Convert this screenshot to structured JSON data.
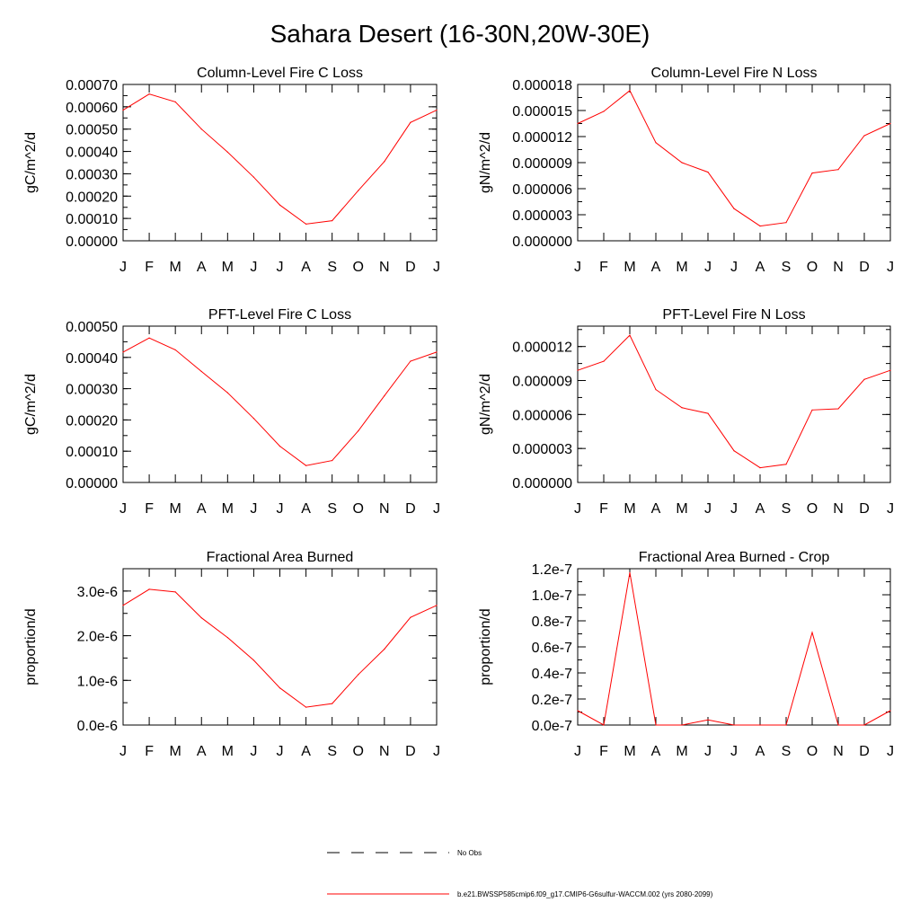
{
  "title": "Sahara Desert (16-30N,20W-30E)",
  "chart_data": [
    {
      "type": "line",
      "title": "Column-Level Fire C Loss",
      "ylabel": "gC/m^2/d",
      "categories": [
        "J",
        "F",
        "M",
        "A",
        "M",
        "J",
        "J",
        "A",
        "S",
        "O",
        "N",
        "D",
        "J"
      ],
      "ylim": [
        0,
        0.0007
      ],
      "yticks": [
        "0.00000",
        "0.00010",
        "0.00020",
        "0.00030",
        "0.00040",
        "0.00050",
        "0.00060",
        "0.00070"
      ],
      "ytick_values": [
        0,
        0.0001,
        0.0002,
        0.0003,
        0.0004,
        0.0005,
        0.0006,
        0.0007
      ],
      "series": [
        {
          "values": [
            0.000585,
            0.000657,
            0.000622,
            0.0005,
            0.000397,
            0.000285,
            0.00016,
            7.5e-05,
            9e-05,
            0.000225,
            0.000355,
            0.00053,
            0.000585
          ]
        }
      ]
    },
    {
      "type": "line",
      "title": "Column-Level Fire N Loss",
      "ylabel": "gN/m^2/d",
      "categories": [
        "J",
        "F",
        "M",
        "A",
        "M",
        "J",
        "J",
        "A",
        "S",
        "O",
        "N",
        "D",
        "J"
      ],
      "ylim": [
        0,
        1.8e-05
      ],
      "yticks": [
        "0.000000",
        "0.000003",
        "0.000006",
        "0.000009",
        "0.000012",
        "0.000015",
        "0.000018"
      ],
      "ytick_values": [
        0,
        3e-06,
        6e-06,
        9e-06,
        1.2e-05,
        1.5e-05,
        1.8e-05
      ],
      "series": [
        {
          "values": [
            1.35e-05,
            1.49e-05,
            1.73e-05,
            1.13e-05,
            9e-06,
            7.9e-06,
            3.7e-06,
            1.7e-06,
            2.1e-06,
            7.8e-06,
            8.2e-06,
            1.21e-05,
            1.35e-05
          ]
        }
      ]
    },
    {
      "type": "line",
      "title": "PFT-Level Fire C Loss",
      "ylabel": "gC/m^2/d",
      "categories": [
        "J",
        "F",
        "M",
        "A",
        "M",
        "J",
        "J",
        "A",
        "S",
        "O",
        "N",
        "D",
        "J"
      ],
      "ylim": [
        0,
        0.0005
      ],
      "yticks": [
        "0.00000",
        "0.00010",
        "0.00020",
        "0.00030",
        "0.00040",
        "0.00050"
      ],
      "ytick_values": [
        0,
        0.0001,
        0.0002,
        0.0003,
        0.0004,
        0.0005
      ],
      "series": [
        {
          "values": [
            0.000417,
            0.000462,
            0.000424,
            0.000355,
            0.000287,
            0.000205,
            0.000116,
            5.4e-05,
            7e-05,
            0.000165,
            0.000277,
            0.000388,
            0.000417
          ]
        }
      ]
    },
    {
      "type": "line",
      "title": "PFT-Level Fire N Loss",
      "ylabel": "gN/m^2/d",
      "categories": [
        "J",
        "F",
        "M",
        "A",
        "M",
        "J",
        "J",
        "A",
        "S",
        "O",
        "N",
        "D",
        "J"
      ],
      "ylim": [
        0,
        1.38e-05
      ],
      "yticks": [
        "0.000000",
        "0.000003",
        "0.000006",
        "0.000009",
        "0.000012"
      ],
      "ytick_values": [
        0,
        3e-06,
        6e-06,
        9e-06,
        1.2e-05
      ],
      "series": [
        {
          "values": [
            9.9e-06,
            1.07e-05,
            1.3e-05,
            8.2e-06,
            6.6e-06,
            6.1e-06,
            2.8e-06,
            1.3e-06,
            1.6e-06,
            6.4e-06,
            6.5e-06,
            9.1e-06,
            9.9e-06
          ]
        }
      ]
    },
    {
      "type": "line",
      "title": "Fractional Area Burned",
      "ylabel": "proportion/d",
      "categories": [
        "J",
        "F",
        "M",
        "A",
        "M",
        "J",
        "J",
        "A",
        "S",
        "O",
        "N",
        "D",
        "J"
      ],
      "ylim": [
        0,
        3.5e-06
      ],
      "yticks": [
        "0.0e-6",
        "1.0e-6",
        "2.0e-6",
        "3.0e-6"
      ],
      "ytick_values": [
        0,
        1e-06,
        2e-06,
        3e-06
      ],
      "series": [
        {
          "values": [
            2.68e-06,
            3.04e-06,
            2.98e-06,
            2.4e-06,
            1.96e-06,
            1.45e-06,
            8.3e-07,
            4e-07,
            4.8e-07,
            1.13e-06,
            1.7e-06,
            2.41e-06,
            2.68e-06
          ]
        }
      ]
    },
    {
      "type": "line",
      "title": "Fractional Area Burned - Crop",
      "ylabel": "proportion/d",
      "categories": [
        "J",
        "F",
        "M",
        "A",
        "M",
        "J",
        "J",
        "A",
        "S",
        "O",
        "N",
        "D",
        "J"
      ],
      "ylim": [
        0,
        1.2e-07
      ],
      "yticks": [
        "0.0e-7",
        "0.2e-7",
        "0.4e-7",
        "0.6e-7",
        "0.8e-7",
        "1.0e-7",
        "1.2e-7"
      ],
      "ytick_values": [
        0,
        2e-08,
        4e-08,
        6e-08,
        8e-08,
        1e-07,
        1.2e-07
      ],
      "series": [
        {
          "values": [
            1.1e-08,
            0,
            1.17e-07,
            0,
            0,
            4e-09,
            0,
            0,
            0,
            7.1e-08,
            0,
            0,
            1.1e-08
          ]
        }
      ]
    }
  ],
  "legend": {
    "entries": [
      {
        "label": "No Obs",
        "color": "#000000",
        "style": "dashed"
      },
      {
        "label": "b.e21.BWSSP585cmip6.f09_g17.CMIP6-G6sulfur-WACCM.002 (yrs 2080-2099)",
        "color": "#ff0000",
        "style": "solid"
      }
    ]
  },
  "line_color": "#ff0000"
}
